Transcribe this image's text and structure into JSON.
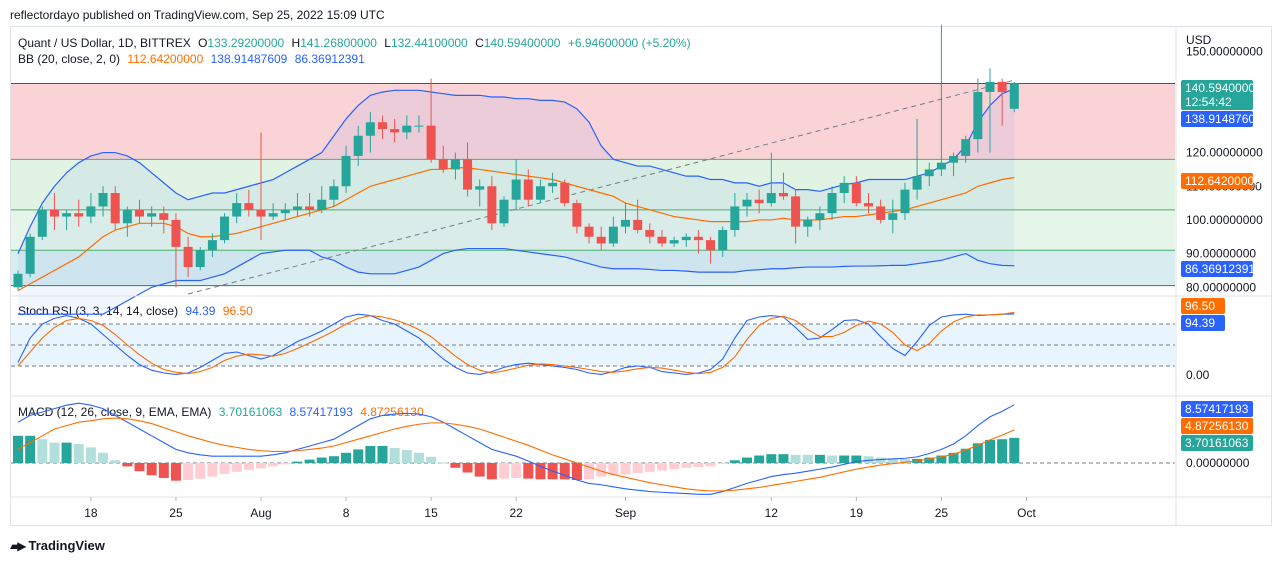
{
  "publisher": "reflectordayo published on TradingView.com, Sep 25, 2022 15:09 UTC",
  "branding": "TradingView",
  "legend_main": {
    "symbol": "Quant / US Dollar, 1D, BITTREX",
    "o_label": "O",
    "o": "133.29200000",
    "h_label": "H",
    "h": "141.26800000",
    "l_label": "L",
    "l": "132.44100000",
    "c_label": "C",
    "c": "140.59400000",
    "change": "+6.94600000 (+5.20%)"
  },
  "legend_bb": {
    "label": "BB (20, close, 2, 0)",
    "basis": "112.64200000",
    "upper": "138.91487609",
    "lower": "86.36912391"
  },
  "legend_stoch": {
    "label": "Stoch RSI (3, 3, 14, 14, close)",
    "k": "94.39",
    "d": "96.50"
  },
  "legend_macd": {
    "label": "MACD (12, 26, close, 9, EMA, EMA)",
    "hist": "3.70161063",
    "macd": "8.57417193",
    "signal": "4.87256130"
  },
  "price_tags": {
    "current": "140.59400000",
    "countdown": "12:54:42",
    "upper": "138.91487609",
    "basis": "112.64200000",
    "lower": "86.36912391",
    "stoch_d": "96.50",
    "stoch_k": "94.39",
    "macd": "8.57417193",
    "signal": "4.87256130",
    "hist": "3.70161063"
  },
  "colors": {
    "up": "#26a69a",
    "down": "#ef5350",
    "bb_upper": "#2962ff",
    "bb_basis": "#ff6d00",
    "stoch_k": "#2962ff",
    "stoch_d": "#ff6d00"
  },
  "chart_data": {
    "type": "candlestick",
    "currency_label": "USD",
    "price_axis_ticks": [
      "150.00000000",
      "120.00000000",
      "110.00000000",
      "100.00000000",
      "90.00000000",
      "80.00000000"
    ],
    "price_range": [
      78,
      157
    ],
    "stoch_axis_ticks": [
      "0.00"
    ],
    "macd_axis_ticks": [
      "0.00000000"
    ],
    "x_tick_labels": [
      "18",
      "25",
      "Aug",
      "8",
      "15",
      "22",
      "Sep",
      "12",
      "19",
      "25",
      "Oct"
    ],
    "x_tick_index": [
      6,
      13,
      20,
      27,
      34,
      41,
      50,
      62,
      69,
      76,
      83
    ],
    "horizontal_levels": [
      140.5,
      118,
      103,
      91,
      80.5
    ],
    "candles": [
      [
        80,
        85,
        79,
        84
      ],
      [
        84,
        96,
        83,
        95
      ],
      [
        95,
        104,
        94,
        103
      ],
      [
        103,
        108,
        97,
        101
      ],
      [
        101,
        103,
        97,
        102
      ],
      [
        102,
        106,
        98,
        101
      ],
      [
        101,
        108,
        99,
        104
      ],
      [
        104,
        110,
        101,
        108
      ],
      [
        108,
        110,
        97,
        99
      ],
      [
        99,
        104,
        95,
        103
      ],
      [
        103,
        106,
        99,
        101
      ],
      [
        101,
        104,
        98,
        102
      ],
      [
        102,
        104,
        96,
        100
      ],
      [
        100,
        102,
        80,
        92
      ],
      [
        92,
        95,
        83,
        86
      ],
      [
        86,
        92,
        85,
        91
      ],
      [
        91,
        96,
        89,
        94
      ],
      [
        94,
        102,
        93,
        101
      ],
      [
        101,
        108,
        99,
        105
      ],
      [
        105,
        109,
        101,
        103
      ],
      [
        103,
        126,
        94,
        101
      ],
      [
        101,
        105,
        100,
        102
      ],
      [
        102,
        105,
        100,
        103
      ],
      [
        103,
        108,
        101,
        104
      ],
      [
        104,
        108,
        101,
        103
      ],
      [
        103,
        110,
        102,
        106
      ],
      [
        106,
        112,
        104,
        110
      ],
      [
        110,
        122,
        108,
        119
      ],
      [
        119,
        128,
        116,
        125
      ],
      [
        125,
        132,
        120,
        129
      ],
      [
        129,
        131,
        124,
        127
      ],
      [
        127,
        130,
        123,
        126
      ],
      [
        126,
        131,
        124,
        128
      ],
      [
        128,
        131,
        126,
        128
      ],
      [
        128,
        142,
        117,
        118
      ],
      [
        118,
        122,
        114,
        115
      ],
      [
        115,
        120,
        112,
        118
      ],
      [
        118,
        123,
        107,
        109
      ],
      [
        109,
        112,
        104,
        110
      ],
      [
        110,
        113,
        97,
        99
      ],
      [
        99,
        107,
        98,
        106
      ],
      [
        106,
        118,
        103,
        112
      ],
      [
        112,
        115,
        104,
        106
      ],
      [
        106,
        112,
        105,
        110
      ],
      [
        110,
        114,
        108,
        111
      ],
      [
        111,
        112,
        104,
        105
      ],
      [
        105,
        106,
        96,
        98
      ],
      [
        98,
        99,
        93,
        95
      ],
      [
        95,
        98,
        91,
        93
      ],
      [
        93,
        101,
        92,
        98
      ],
      [
        98,
        105,
        96,
        100
      ],
      [
        100,
        106,
        96,
        97
      ],
      [
        97,
        99,
        93,
        95
      ],
      [
        95,
        97,
        92,
        93
      ],
      [
        93,
        95,
        92,
        94
      ],
      [
        94,
        96,
        92,
        95
      ],
      [
        95,
        97,
        90,
        94
      ],
      [
        94,
        95,
        87,
        91
      ],
      [
        91,
        98,
        89,
        97
      ],
      [
        97,
        108,
        95,
        104
      ],
      [
        104,
        108,
        101,
        106
      ],
      [
        106,
        109,
        102,
        105
      ],
      [
        105,
        120,
        104,
        108
      ],
      [
        108,
        114,
        106,
        107
      ],
      [
        107,
        109,
        93,
        98
      ],
      [
        98,
        101,
        95,
        100
      ],
      [
        100,
        104,
        97,
        102
      ],
      [
        102,
        110,
        100,
        108
      ],
      [
        108,
        113,
        105,
        111
      ],
      [
        111,
        113,
        104,
        105
      ],
      [
        105,
        108,
        102,
        104
      ],
      [
        104,
        106,
        99,
        100
      ],
      [
        100,
        106,
        96,
        102
      ],
      [
        102,
        111,
        100,
        109
      ],
      [
        109,
        130,
        106,
        113
      ],
      [
        113,
        117,
        110,
        115
      ],
      [
        115,
        158,
        113,
        117
      ],
      [
        117,
        120,
        113,
        119
      ],
      [
        119,
        125,
        117,
        124
      ],
      [
        124,
        142,
        120,
        138
      ],
      [
        138,
        145,
        120,
        141
      ],
      [
        141,
        142,
        128,
        138
      ],
      [
        133,
        141,
        132,
        140.594
      ]
    ],
    "bb_upper": [
      90,
      98,
      105,
      110,
      114,
      117,
      119,
      120,
      120,
      119,
      117,
      114,
      111,
      108,
      106,
      107,
      108,
      108,
      109,
      110,
      111,
      112,
      114,
      116,
      118,
      120,
      125,
      130,
      134,
      137,
      138,
      138.5,
      138.5,
      138.5,
      138,
      137.5,
      137,
      137,
      137,
      136.5,
      136.5,
      136,
      136,
      135.5,
      135.5,
      135,
      133,
      129,
      122,
      118,
      117,
      116,
      116,
      115,
      114,
      113,
      113,
      112,
      112,
      111,
      111,
      110,
      111,
      111,
      109,
      109,
      108.5,
      109.5,
      110.5,
      111,
      112,
      112,
      112,
      112,
      113,
      114,
      116,
      118,
      122,
      129,
      134,
      137.5,
      138.9
    ],
    "bb_basis": [
      79,
      81,
      83,
      85,
      87,
      89,
      92,
      95,
      97,
      98,
      99,
      99,
      99,
      98,
      96,
      95,
      95,
      95.5,
      96,
      97,
      98,
      99,
      100,
      101,
      102,
      103,
      104,
      106,
      108,
      110,
      111,
      112,
      113,
      114,
      115,
      115,
      115.5,
      115.5,
      115,
      114.5,
      114,
      113.5,
      113,
      112.5,
      112,
      111,
      110,
      109,
      108,
      107,
      105,
      104,
      103,
      102,
      101,
      100.5,
      100,
      99.5,
      99.5,
      99.5,
      99.5,
      100,
      100,
      100.5,
      100,
      100,
      100,
      100.5,
      101,
      101,
      101.5,
      102,
      102.5,
      103,
      104,
      105,
      106,
      107,
      108,
      110,
      111,
      112,
      112.6
    ],
    "bb_lower": [
      72,
      72,
      72,
      72,
      72,
      72,
      72,
      72,
      74,
      76,
      78,
      80,
      81,
      82,
      82,
      82,
      83,
      84,
      86,
      88,
      90,
      90.5,
      91,
      91,
      91,
      89,
      88,
      86,
      84.5,
      84,
      84,
      84,
      85,
      86,
      88,
      90,
      91,
      91.5,
      91.5,
      91.5,
      91.5,
      91,
      90.5,
      90,
      89.5,
      89,
      88,
      87,
      86,
      85.5,
      85.5,
      85.5,
      85.3,
      85,
      85,
      84.8,
      84.5,
      84.5,
      84.5,
      84.5,
      85,
      85.2,
      85.5,
      85.5,
      85.8,
      86,
      86,
      86,
      86.2,
      86.3,
      86.3,
      86.4,
      86.5,
      86.5,
      87,
      87.5,
      88,
      89,
      90,
      88,
      87,
      86.5,
      86.37
    ],
    "stoch_k": [
      25,
      60,
      80,
      88,
      92,
      88,
      80,
      65,
      50,
      35,
      22,
      14,
      10,
      8,
      10,
      18,
      28,
      38,
      40,
      35,
      30,
      35,
      45,
      55,
      62,
      70,
      80,
      90,
      94,
      92,
      85,
      80,
      70,
      60,
      45,
      30,
      18,
      10,
      8,
      12,
      18,
      22,
      24,
      22,
      20,
      18,
      15,
      10,
      8,
      12,
      18,
      20,
      18,
      12,
      10,
      8,
      10,
      15,
      30,
      60,
      85,
      90,
      92,
      90,
      75,
      58,
      60,
      72,
      85,
      86,
      80,
      62,
      45,
      35,
      55,
      78,
      90,
      93,
      94,
      92,
      93,
      94,
      94.39
    ],
    "stoch_d": [
      20,
      40,
      60,
      75,
      85,
      88,
      85,
      78,
      65,
      50,
      36,
      24,
      15,
      11,
      9,
      12,
      18,
      28,
      34,
      37,
      36,
      34,
      38,
      45,
      53,
      61,
      70,
      80,
      88,
      92,
      90,
      86,
      80,
      72,
      62,
      48,
      34,
      22,
      14,
      10,
      13,
      17,
      21,
      23,
      22,
      20,
      18,
      15,
      12,
      11,
      13,
      16,
      18,
      17,
      14,
      11,
      9,
      11,
      18,
      33,
      58,
      78,
      88,
      91,
      85,
      72,
      62,
      62,
      68,
      78,
      84,
      80,
      68,
      50,
      42,
      52,
      70,
      83,
      90,
      93,
      93,
      94,
      96.5
    ],
    "macd": [
      6,
      7,
      7.5,
      8,
      8.5,
      8.8,
      8.5,
      8,
      7,
      6,
      5,
      4,
      3,
      2,
      1.5,
      1.2,
      1,
      1,
      1,
      1,
      1,
      1.2,
      1.5,
      2,
      2.5,
      3,
      3.5,
      4.5,
      5.5,
      6.5,
      7,
      7.2,
      7.3,
      7.2,
      6.8,
      6,
      5,
      4,
      3,
      2,
      1.5,
      1,
      0.3,
      -0.5,
      -1.2,
      -1.8,
      -2.5,
      -3,
      -3.2,
      -3.5,
      -3.8,
      -4,
      -4.2,
      -4.3,
      -4.4,
      -4.5,
      -4.6,
      -4.6,
      -4.2,
      -3.6,
      -3,
      -2.5,
      -2,
      -1.7,
      -1.5,
      -1.2,
      -0.9,
      -0.6,
      -0.2,
      0.2,
      0.4,
      0.5,
      0.6,
      0.7,
      0.9,
      1.4,
      2,
      2.8,
      4,
      5.5,
      6.8,
      7.6,
      8.574
    ],
    "signal": [
      2,
      3,
      4,
      5,
      5.5,
      6,
      6.2,
      6.5,
      6.6,
      6.5,
      6.2,
      5.8,
      5.2,
      4.6,
      4,
      3.5,
      3,
      2.6,
      2.3,
      2,
      1.8,
      1.7,
      1.7,
      1.8,
      2,
      2.2,
      2.5,
      3,
      3.5,
      4,
      4.5,
      5,
      5.4,
      5.7,
      5.9,
      5.9,
      5.7,
      5.4,
      5,
      4.4,
      3.8,
      3.2,
      2.6,
      1.9,
      1.2,
      0.6,
      0,
      -0.6,
      -1.2,
      -1.7,
      -2.1,
      -2.5,
      -2.9,
      -3.2,
      -3.5,
      -3.8,
      -4,
      -4.1,
      -4.1,
      -4,
      -3.8,
      -3.6,
      -3.3,
      -3,
      -2.7,
      -2.4,
      -2.1,
      -1.7,
      -1.3,
      -0.9,
      -0.6,
      -0.3,
      -0.1,
      0.1,
      0.3,
      0.6,
      0.9,
      1.3,
      1.9,
      2.6,
      3.4,
      4.1,
      4.873
    ]
  }
}
